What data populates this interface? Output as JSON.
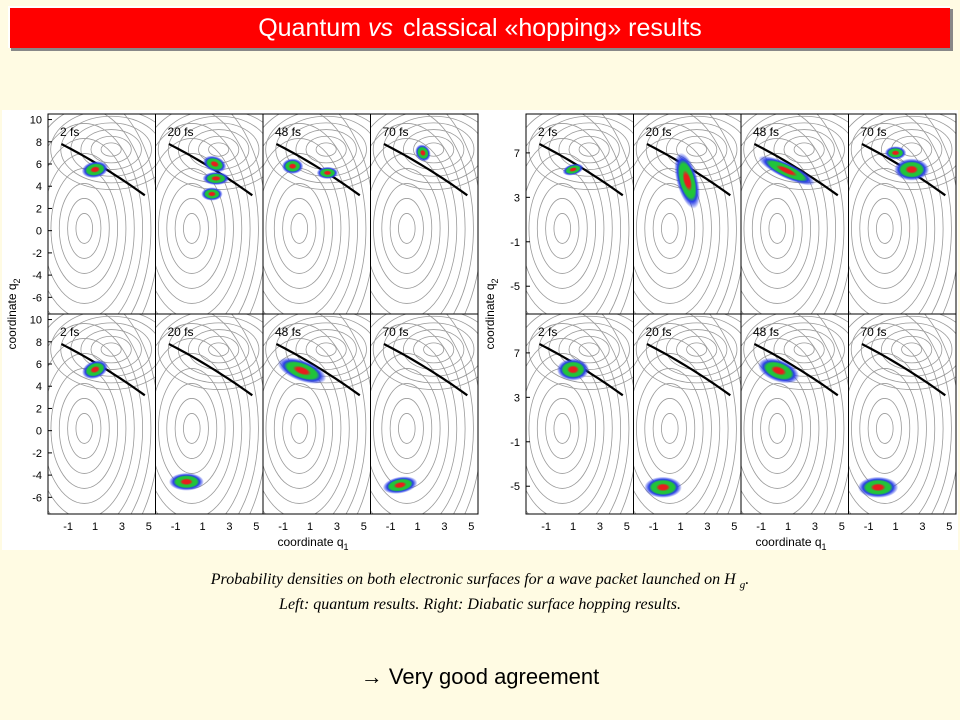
{
  "title": {
    "part1": "Quantum",
    "vs": "vs",
    "part2": "classical «hopping» results"
  },
  "colors": {
    "title_bg": "#ff0000",
    "title_text": "#ffffff",
    "page_bg": "#fffbe3",
    "density_outer": "#2a3fe8",
    "density_mid": "#21c43a",
    "density_core": "#e81d1d"
  },
  "figures": [
    {
      "id": "quantum",
      "ylabel_prefix": "coordinate q",
      "ylabel_sub": "2",
      "xlabel_prefix": "coordinate q",
      "xlabel_sub": "1",
      "y_ticks": [
        "10",
        "8",
        "6",
        "4",
        "2",
        "0",
        "-2",
        "-4",
        "-6"
      ],
      "x_ticks": [
        "-1",
        "1",
        "3",
        "5"
      ],
      "ylim": [
        -7.5,
        10.5
      ],
      "xlim": [
        -2.5,
        5.5
      ],
      "panels": [
        {
          "row": 0,
          "col": 0,
          "label": "2 fs",
          "blobs": [
            {
              "x": 1.0,
              "y": 5.5,
              "rx": 1.0,
              "ry": 0.75,
              "rot": 10
            }
          ]
        },
        {
          "row": 0,
          "col": 1,
          "label": "20 fs",
          "blobs": [
            {
              "x": 1.9,
              "y": 6.0,
              "rx": 0.9,
              "ry": 0.7,
              "rot": -20
            },
            {
              "x": 2.0,
              "y": 4.7,
              "rx": 1.0,
              "ry": 0.6,
              "rot": 0
            },
            {
              "x": 1.7,
              "y": 3.3,
              "rx": 0.8,
              "ry": 0.6,
              "rot": 0
            }
          ]
        },
        {
          "row": 0,
          "col": 2,
          "label": "48 fs",
          "blobs": [
            {
              "x": -0.3,
              "y": 5.8,
              "rx": 0.8,
              "ry": 0.7,
              "rot": 0
            },
            {
              "x": 2.3,
              "y": 5.2,
              "rx": 0.8,
              "ry": 0.55,
              "rot": 0
            }
          ]
        },
        {
          "row": 0,
          "col": 3,
          "label": "70 fs",
          "blobs": [
            {
              "x": 1.4,
              "y": 7.0,
              "rx": 0.55,
              "ry": 0.8,
              "rot": 30
            }
          ]
        },
        {
          "row": 1,
          "col": 0,
          "label": "2 fs",
          "blobs": [
            {
              "x": 1.0,
              "y": 5.5,
              "rx": 1.0,
              "ry": 0.8,
              "rot": 20
            }
          ]
        },
        {
          "row": 1,
          "col": 1,
          "label": "20 fs",
          "blobs": [
            {
              "x": -0.2,
              "y": -4.6,
              "rx": 1.3,
              "ry": 0.8,
              "rot": 0
            }
          ]
        },
        {
          "row": 1,
          "col": 2,
          "label": "48 fs",
          "blobs": [
            {
              "x": 0.4,
              "y": 5.4,
              "rx": 1.9,
              "ry": 0.95,
              "rot": -20
            }
          ]
        },
        {
          "row": 1,
          "col": 3,
          "label": "70 fs",
          "blobs": [
            {
              "x": -0.3,
              "y": -4.9,
              "rx": 1.3,
              "ry": 0.75,
              "rot": 10
            }
          ]
        }
      ]
    },
    {
      "id": "hopping",
      "ylabel_prefix": "coordinate q",
      "ylabel_sub": "2",
      "xlabel_prefix": "coordinate q",
      "xlabel_sub": "1",
      "y_ticks": [
        "7",
        "3",
        "-1",
        "-5"
      ],
      "x_ticks": [
        "-1",
        "1",
        "3",
        "5"
      ],
      "ylim": [
        -7.5,
        10.5
      ],
      "xlim": [
        -2.5,
        5.5
      ],
      "panels": [
        {
          "row": 0,
          "col": 0,
          "label": "2 fs",
          "blobs": [
            {
              "x": 1.0,
              "y": 5.5,
              "rx": 0.8,
              "ry": 0.5,
              "rot": 15
            }
          ]
        },
        {
          "row": 0,
          "col": 1,
          "label": "20 fs",
          "blobs": [
            {
              "x": 1.5,
              "y": 4.5,
              "rx": 0.8,
              "ry": 2.6,
              "rot": 15
            }
          ]
        },
        {
          "row": 0,
          "col": 2,
          "label": "48 fs",
          "blobs": [
            {
              "x": 0.9,
              "y": 5.4,
              "rx": 2.3,
              "ry": 0.7,
              "rot": -25
            }
          ]
        },
        {
          "row": 0,
          "col": 3,
          "label": "70 fs",
          "blobs": [
            {
              "x": 1.0,
              "y": 7.0,
              "rx": 0.8,
              "ry": 0.6,
              "rot": 0
            },
            {
              "x": 2.2,
              "y": 5.5,
              "rx": 1.3,
              "ry": 1.0,
              "rot": 0
            }
          ]
        },
        {
          "row": 1,
          "col": 0,
          "label": "2 fs",
          "blobs": [
            {
              "x": 1.0,
              "y": 5.5,
              "rx": 1.2,
              "ry": 1.0,
              "rot": 0
            }
          ]
        },
        {
          "row": 1,
          "col": 1,
          "label": "20 fs",
          "blobs": [
            {
              "x": -0.3,
              "y": -5.1,
              "rx": 1.4,
              "ry": 0.95,
              "rot": 0
            }
          ]
        },
        {
          "row": 1,
          "col": 2,
          "label": "48 fs",
          "blobs": [
            {
              "x": 0.3,
              "y": 5.4,
              "rx": 1.6,
              "ry": 1.0,
              "rot": -20
            }
          ]
        },
        {
          "row": 1,
          "col": 3,
          "label": "70 fs",
          "blobs": [
            {
              "x": -0.3,
              "y": -5.1,
              "rx": 1.5,
              "ry": 0.95,
              "rot": 0
            }
          ]
        }
      ]
    }
  ],
  "caption": {
    "line1_text": "Probability densities on both electronic surfaces for a wave packet launched on H",
    "line1_sub": "g",
    "line1_end": ".",
    "line2": "Left: quantum results. Right: Diabatic surface hopping results."
  },
  "conclusion": {
    "arrow": "→",
    "text": "Very good agreement"
  }
}
